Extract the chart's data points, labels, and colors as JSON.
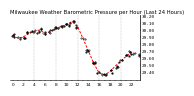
{
  "title": "Milwaukee Weather Barometric Pressure per Hour (Last 24 Hours)",
  "hours": [
    0,
    1,
    2,
    3,
    4,
    5,
    6,
    7,
    8,
    9,
    10,
    11,
    12,
    13,
    14,
    15,
    16,
    17,
    18,
    19,
    20,
    21,
    22,
    23
  ],
  "pressure": [
    29.92,
    29.88,
    29.9,
    29.95,
    29.98,
    30.0,
    29.95,
    29.98,
    30.02,
    30.05,
    30.08,
    30.12,
    30.05,
    29.88,
    29.7,
    29.52,
    29.38,
    29.35,
    29.4,
    29.48,
    29.55,
    29.62,
    29.68,
    29.65
  ],
  "line_color": "#ff0000",
  "dot_color": "#000000",
  "grid_color": "#aaaaaa",
  "bg_color": "#ffffff",
  "ylim_min": 29.28,
  "ylim_max": 30.22,
  "ytick_values": [
    29.4,
    29.5,
    29.6,
    29.7,
    29.8,
    29.9,
    30.0,
    30.1,
    30.2
  ],
  "title_fontsize": 3.8,
  "tick_fontsize": 3.2,
  "vertical_lines": [
    4,
    8,
    12,
    16,
    20
  ],
  "dot_seed": 99
}
